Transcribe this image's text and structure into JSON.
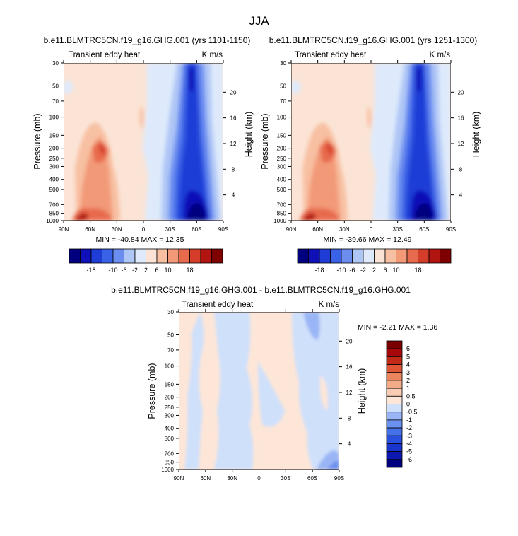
{
  "main_title": "JJA",
  "colors": {
    "top_levels": [
      -18,
      -14,
      -10,
      -6,
      -2,
      2,
      6,
      10,
      14,
      18
    ],
    "top_fills": [
      "#00007f",
      "#1010b8",
      "#1f3dd6",
      "#3a62e6",
      "#6b8df0",
      "#aec6f6",
      "#deeafc",
      "#fbe4d6",
      "#f8c0a2",
      "#f29a78",
      "#e86a4d",
      "#d43d2a",
      "#b2150f",
      "#7f0000"
    ],
    "diff_levels": [
      -6,
      -5,
      -4,
      -3,
      -2,
      -1,
      -0.5,
      0,
      0.5,
      1,
      2,
      3,
      4,
      5,
      6
    ],
    "diff_fills": [
      "#00007f",
      "#0c18b0",
      "#1a35cc",
      "#2a50df",
      "#4470e8",
      "#6a90f0",
      "#9ab5f5",
      "#cfe0fb",
      "#fde6d8",
      "#f9cdb4",
      "#f4ab87",
      "#ec855e",
      "#de5636",
      "#c22a18",
      "#a8080a",
      "#7a0000"
    ]
  },
  "chart_data": [
    {
      "type": "heatmap",
      "title": "b.e11.BLMTRC5CN.f19_g16.GHG.001 (yrs 1101-1150)",
      "left_label": "Transient eddy heat",
      "right_label": "K m/s",
      "xlabel": "",
      "ylabel": "Pressure (mb)",
      "ylabel_right": "Height (km)",
      "x_ticks": [
        "90N",
        "60N",
        "30N",
        "0",
        "30S",
        "60S",
        "90S"
      ],
      "y_ticks": [
        "30",
        "50",
        "70",
        "100",
        "150",
        "200",
        "250",
        "300",
        "400",
        "500",
        "700",
        "850",
        "1000"
      ],
      "height_ticks": [
        "20",
        "16",
        "12",
        "8",
        "4"
      ],
      "min": "-40.84",
      "max": "12.35",
      "minmax_text": "MIN = -40.84   MAX =  12.35",
      "colorbar_labels": [
        "-18",
        "-10",
        "-6",
        "-2",
        "2",
        "6",
        "10",
        "18"
      ]
    },
    {
      "type": "heatmap",
      "title": "b.e11.BLMTRC5CN.f19_g16.GHG.001 (yrs 1251-1300)",
      "left_label": "Transient eddy heat",
      "right_label": "K m/s",
      "xlabel": "",
      "ylabel": "Pressure (mb)",
      "ylabel_right": "Height (km)",
      "x_ticks": [
        "90N",
        "60N",
        "30N",
        "0",
        "30S",
        "60S",
        "90S"
      ],
      "y_ticks": [
        "30",
        "50",
        "70",
        "100",
        "150",
        "200",
        "250",
        "300",
        "400",
        "500",
        "700",
        "850",
        "1000"
      ],
      "height_ticks": [
        "20",
        "16",
        "12",
        "8",
        "4"
      ],
      "min": "-39.66",
      "max": "12.49",
      "minmax_text": "MIN = -39.66   MAX =  12.49",
      "colorbar_labels": [
        "-18",
        "-10",
        "-6",
        "-2",
        "2",
        "6",
        "10",
        "18"
      ]
    },
    {
      "type": "heatmap",
      "title": "b.e11.BLMTRC5CN.f19_g16.GHG.001 - b.e11.BLMTRC5CN.f19_g16.GHG.001",
      "left_label": "Transient eddy heat",
      "right_label": "K m/s",
      "xlabel": "",
      "ylabel": "Pressure (mb)",
      "ylabel_right": "Height (km)",
      "x_ticks": [
        "90N",
        "60N",
        "30N",
        "0",
        "30S",
        "60S",
        "90S"
      ],
      "y_ticks": [
        "30",
        "50",
        "70",
        "100",
        "150",
        "200",
        "250",
        "300",
        "400",
        "500",
        "700",
        "850",
        "1000"
      ],
      "height_ticks": [
        "20",
        "16",
        "12",
        "8",
        "4"
      ],
      "min": "-2.21",
      "max": "1.36",
      "minmax_text": "MIN = -2.21  MAX =  1.36",
      "colorbar_labels": [
        "6",
        "5",
        "4",
        "3",
        "2",
        "1",
        "0.5",
        "0",
        "-0.5",
        "-1",
        "-2",
        "-3",
        "-4",
        "-5",
        "-6"
      ]
    }
  ]
}
